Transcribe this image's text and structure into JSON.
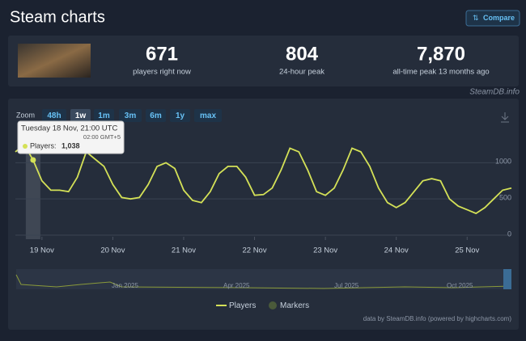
{
  "header": {
    "title": "Steam charts",
    "compare": "Compare"
  },
  "stats": [
    {
      "value": "671",
      "label": "players right now"
    },
    {
      "value": "804",
      "label": "24-hour peak"
    },
    {
      "value": "7,870",
      "label": "all-time peak 13 months ago"
    }
  ],
  "source": "SteamDB.info",
  "zoom": {
    "label": "Zoom",
    "buttons": [
      "48h",
      "1w",
      "1m",
      "3m",
      "6m",
      "1y",
      "max"
    ],
    "active": "1w"
  },
  "chart_data": {
    "type": "line",
    "x": [
      "18 Nov 15:00",
      "18 Nov 18:00",
      "18 Nov 21:00",
      "19 Nov 00:00",
      "19 Nov 03:00",
      "19 Nov 06:00",
      "19 Nov 09:00",
      "19 Nov 12:00",
      "19 Nov 15:00",
      "19 Nov 18:00",
      "19 Nov 21:00",
      "20 Nov 00:00",
      "20 Nov 03:00",
      "20 Nov 06:00",
      "20 Nov 09:00",
      "20 Nov 12:00",
      "20 Nov 15:00",
      "20 Nov 18:00",
      "20 Nov 21:00",
      "21 Nov 00:00",
      "21 Nov 03:00",
      "21 Nov 06:00",
      "21 Nov 09:00",
      "21 Nov 12:00",
      "21 Nov 15:00",
      "21 Nov 18:00",
      "21 Nov 21:00",
      "22 Nov 00:00",
      "22 Nov 03:00",
      "22 Nov 06:00",
      "22 Nov 09:00",
      "22 Nov 12:00",
      "22 Nov 15:00",
      "22 Nov 18:00",
      "22 Nov 21:00",
      "23 Nov 00:00",
      "23 Nov 03:00",
      "23 Nov 06:00",
      "23 Nov 09:00",
      "23 Nov 12:00",
      "23 Nov 15:00",
      "23 Nov 18:00",
      "23 Nov 21:00",
      "24 Nov 00:00",
      "24 Nov 03:00",
      "24 Nov 06:00",
      "24 Nov 09:00",
      "24 Nov 12:00",
      "24 Nov 15:00",
      "24 Nov 18:00",
      "24 Nov 21:00",
      "25 Nov 00:00",
      "25 Nov 03:00",
      "25 Nov 06:00",
      "25 Nov 09:00",
      "25 Nov 12:00",
      "25 Nov 15:00"
    ],
    "series": [
      {
        "name": "Players",
        "color": "#d4e157",
        "values": [
          1150,
          1250,
          1038,
          750,
          620,
          620,
          600,
          800,
          1150,
          1050,
          950,
          700,
          520,
          500,
          520,
          700,
          950,
          1000,
          920,
          620,
          480,
          450,
          600,
          850,
          950,
          950,
          800,
          550,
          560,
          650,
          900,
          1200,
          1150,
          900,
          600,
          550,
          650,
          900,
          1200,
          1150,
          950,
          650,
          450,
          380,
          450,
          600,
          750,
          780,
          750,
          500,
          400,
          350,
          300,
          380,
          500,
          620,
          650
        ]
      }
    ],
    "markers_label": "Markers",
    "xticks": [
      "19 Nov",
      "20 Nov",
      "21 Nov",
      "22 Nov",
      "23 Nov",
      "24 Nov",
      "25 Nov"
    ],
    "ylim": [
      0,
      1350
    ],
    "yticks": [
      0,
      500,
      1000
    ],
    "grid": true,
    "tooltip": {
      "date": "Tuesday 18 Nov, 21:00 UTC",
      "local_time": "02:00 GMT+5",
      "label": "Players:",
      "value_label": "1,038",
      "index": 2
    },
    "navigator_labels": [
      "Jan 2025",
      "Apr 2025",
      "Jul 2025",
      "Oct 2025"
    ],
    "credit": "data by SteamDB.info (powered by highcharts.com)"
  }
}
